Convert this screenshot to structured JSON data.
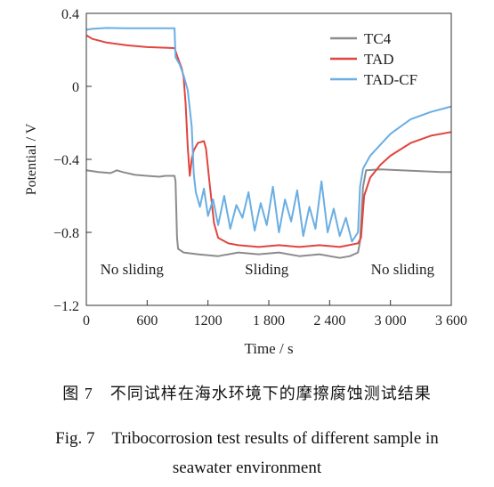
{
  "chart_data": {
    "type": "line",
    "xlabel": "Time / s",
    "ylabel": "Potential / V",
    "xlim": [
      0,
      3600
    ],
    "ylim": [
      -1.2,
      0.4
    ],
    "xticks": [
      0,
      600,
      1200,
      1800,
      2400,
      3000,
      3600
    ],
    "xtick_labels": [
      "0",
      "600",
      "1200",
      "1 800",
      "2 400",
      "3 000",
      "3 600"
    ],
    "yticks": [
      0.4,
      0,
      -0.4,
      -0.8,
      -1.2
    ],
    "ytick_labels": [
      "0.4",
      "0",
      "−0.4",
      "−0.8",
      "−1.2"
    ],
    "legend_position": "top-right",
    "annotations": [
      {
        "text": "No sliding",
        "x": 450,
        "y": -1.03
      },
      {
        "text": "Sliding",
        "x": 1780,
        "y": -1.03
      },
      {
        "text": "No sliding",
        "x": 3120,
        "y": -1.03
      }
    ],
    "series": [
      {
        "name": "TC4",
        "color": "#8c8c8c",
        "points": [
          [
            0,
            -0.46
          ],
          [
            120,
            -0.47
          ],
          [
            240,
            -0.475
          ],
          [
            300,
            -0.46
          ],
          [
            360,
            -0.47
          ],
          [
            480,
            -0.485
          ],
          [
            600,
            -0.49
          ],
          [
            720,
            -0.495
          ],
          [
            780,
            -0.49
          ],
          [
            870,
            -0.49
          ],
          [
            880,
            -0.52
          ],
          [
            895,
            -0.83
          ],
          [
            905,
            -0.89
          ],
          [
            960,
            -0.91
          ],
          [
            1100,
            -0.92
          ],
          [
            1300,
            -0.93
          ],
          [
            1500,
            -0.91
          ],
          [
            1700,
            -0.92
          ],
          [
            1900,
            -0.91
          ],
          [
            2100,
            -0.93
          ],
          [
            2300,
            -0.92
          ],
          [
            2500,
            -0.94
          ],
          [
            2600,
            -0.93
          ],
          [
            2680,
            -0.91
          ],
          [
            2700,
            -0.85
          ],
          [
            2730,
            -0.55
          ],
          [
            2760,
            -0.46
          ],
          [
            2900,
            -0.455
          ],
          [
            3100,
            -0.46
          ],
          [
            3300,
            -0.465
          ],
          [
            3500,
            -0.47
          ],
          [
            3600,
            -0.47
          ]
        ]
      },
      {
        "name": "TAD",
        "color": "#e0453f",
        "points": [
          [
            0,
            0.28
          ],
          [
            60,
            0.26
          ],
          [
            200,
            0.24
          ],
          [
            400,
            0.225
          ],
          [
            600,
            0.215
          ],
          [
            870,
            0.21
          ],
          [
            900,
            0.16
          ],
          [
            940,
            0.1
          ],
          [
            960,
            0.05
          ],
          [
            980,
            -0.1
          ],
          [
            1000,
            -0.33
          ],
          [
            1020,
            -0.49
          ],
          [
            1040,
            -0.4
          ],
          [
            1060,
            -0.35
          ],
          [
            1100,
            -0.31
          ],
          [
            1160,
            -0.3
          ],
          [
            1180,
            -0.34
          ],
          [
            1220,
            -0.55
          ],
          [
            1260,
            -0.75
          ],
          [
            1300,
            -0.83
          ],
          [
            1400,
            -0.86
          ],
          [
            1500,
            -0.87
          ],
          [
            1700,
            -0.88
          ],
          [
            1900,
            -0.87
          ],
          [
            2100,
            -0.88
          ],
          [
            2300,
            -0.87
          ],
          [
            2500,
            -0.88
          ],
          [
            2680,
            -0.86
          ],
          [
            2710,
            -0.83
          ],
          [
            2740,
            -0.6
          ],
          [
            2800,
            -0.5
          ],
          [
            2900,
            -0.43
          ],
          [
            3000,
            -0.38
          ],
          [
            3200,
            -0.31
          ],
          [
            3400,
            -0.27
          ],
          [
            3600,
            -0.25
          ]
        ]
      },
      {
        "name": "TAD-CF",
        "color": "#6aaee3",
        "points": [
          [
            0,
            0.31
          ],
          [
            60,
            0.315
          ],
          [
            200,
            0.32
          ],
          [
            400,
            0.318
          ],
          [
            600,
            0.318
          ],
          [
            870,
            0.318
          ],
          [
            880,
            0.16
          ],
          [
            920,
            0.12
          ],
          [
            960,
            0.06
          ],
          [
            1000,
            -0.02
          ],
          [
            1040,
            -0.22
          ],
          [
            1060,
            -0.48
          ],
          [
            1080,
            -0.58
          ],
          [
            1120,
            -0.66
          ],
          [
            1160,
            -0.56
          ],
          [
            1200,
            -0.71
          ],
          [
            1250,
            -0.62
          ],
          [
            1300,
            -0.76
          ],
          [
            1360,
            -0.6
          ],
          [
            1420,
            -0.78
          ],
          [
            1480,
            -0.65
          ],
          [
            1540,
            -0.72
          ],
          [
            1600,
            -0.58
          ],
          [
            1660,
            -0.79
          ],
          [
            1720,
            -0.64
          ],
          [
            1780,
            -0.76
          ],
          [
            1840,
            -0.55
          ],
          [
            1900,
            -0.8
          ],
          [
            1960,
            -0.62
          ],
          [
            2020,
            -0.74
          ],
          [
            2080,
            -0.57
          ],
          [
            2140,
            -0.82
          ],
          [
            2200,
            -0.66
          ],
          [
            2260,
            -0.78
          ],
          [
            2320,
            -0.52
          ],
          [
            2380,
            -0.8
          ],
          [
            2440,
            -0.67
          ],
          [
            2500,
            -0.82
          ],
          [
            2560,
            -0.72
          ],
          [
            2620,
            -0.85
          ],
          [
            2680,
            -0.8
          ],
          [
            2700,
            -0.55
          ],
          [
            2730,
            -0.45
          ],
          [
            2800,
            -0.38
          ],
          [
            2900,
            -0.32
          ],
          [
            3000,
            -0.26
          ],
          [
            3100,
            -0.22
          ],
          [
            3200,
            -0.18
          ],
          [
            3400,
            -0.14
          ],
          [
            3600,
            -0.11
          ]
        ]
      }
    ]
  },
  "caption": {
    "cn": "图 7　不同试样在海水环境下的摩擦腐蚀测试结果",
    "en_line1": "Fig. 7　Tribocorrosion test results of different sample in",
    "en_line2": "seawater environment"
  }
}
